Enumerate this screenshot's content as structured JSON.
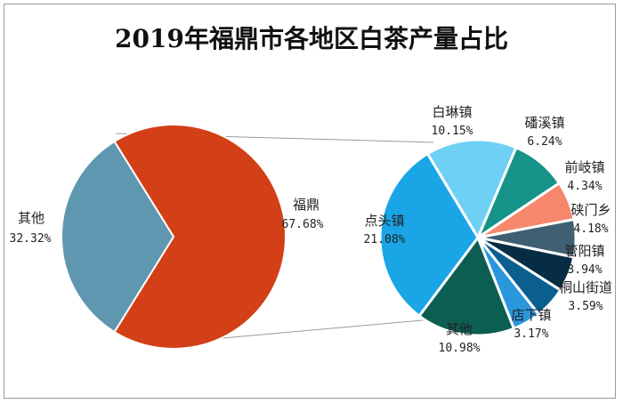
{
  "chart_data": {
    "type": "pie-of-pie",
    "title": "2019年福鼎市各地区白茶产量占比",
    "main_pie": {
      "slices": [
        {
          "label": "福鼎",
          "value": 67.68,
          "value_label": "67.68%",
          "color": "#d33f16"
        },
        {
          "label": "其他",
          "value": 32.32,
          "value_label": "32.32%",
          "color": "#5f97b0"
        }
      ]
    },
    "secondary_pie": {
      "slices": [
        {
          "label": "白琳镇",
          "value": 10.15,
          "value_label": "10.15%",
          "color": "#6fd0f5"
        },
        {
          "label": "磻溪镇",
          "value": 6.24,
          "value_label": "6.24%",
          "color": "#16948a"
        },
        {
          "label": "前岐镇",
          "value": 4.34,
          "value_label": "4.34%",
          "color": "#f4876c"
        },
        {
          "label": "硖门乡",
          "value": 4.18,
          "value_label": "4.18%",
          "color": "#3f5f72"
        },
        {
          "label": "管阳镇",
          "value": 3.94,
          "value_label": "3.94%",
          "color": "#062d44"
        },
        {
          "label": "桐山街道",
          "value": 3.59,
          "value_label": "3.59%",
          "color": "#0a5f8e"
        },
        {
          "label": "店下镇",
          "value": 3.17,
          "value_label": "3.17%",
          "color": "#2a96dc"
        },
        {
          "label": "其他",
          "value": 10.98,
          "value_label": "10.98%",
          "color": "#0c5e52"
        },
        {
          "label": "点头镇",
          "value": 21.08,
          "value_label": "21.08%",
          "color": "#1aa5e6"
        }
      ]
    }
  }
}
